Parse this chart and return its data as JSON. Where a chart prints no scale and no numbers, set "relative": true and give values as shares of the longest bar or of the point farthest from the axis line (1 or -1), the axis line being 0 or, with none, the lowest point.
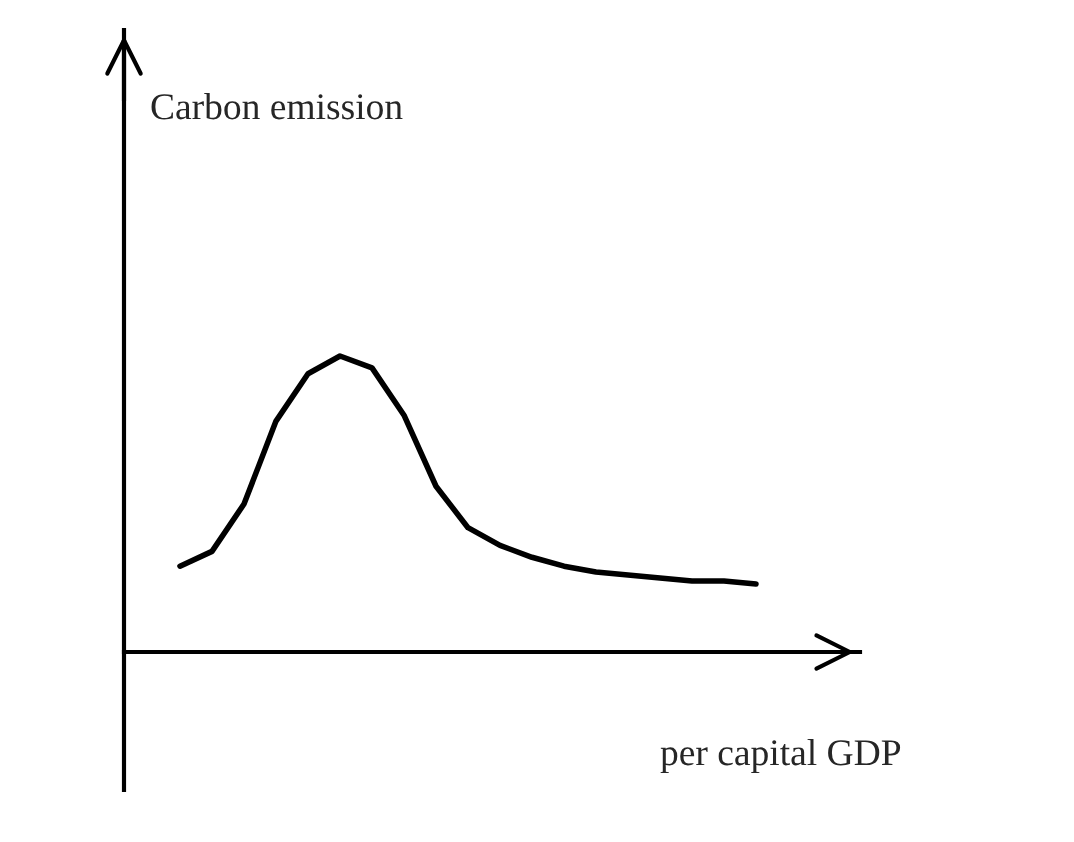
{
  "chart_data": {
    "type": "line",
    "relative": true,
    "annotations": [
      "Carbon emission",
      "per capital GDP"
    ],
    "categories": [
      null,
      null,
      null,
      null,
      null,
      null,
      null,
      null,
      null,
      null,
      null,
      null,
      null,
      null,
      null,
      null,
      null,
      null,
      null
    ],
    "series": [
      {
        "color": "#000000",
        "values": [
          0.29,
          0.34,
          0.5,
          0.78,
          0.94,
          1.0,
          0.96,
          0.8,
          0.56,
          0.42,
          0.36,
          0.32,
          0.29,
          0.27,
          0.26,
          0.25,
          0.24,
          0.24,
          0.23
        ]
      }
    ],
    "legend": false,
    "tick_labels": false,
    "marker": "none",
    "line_style": "solid"
  }
}
